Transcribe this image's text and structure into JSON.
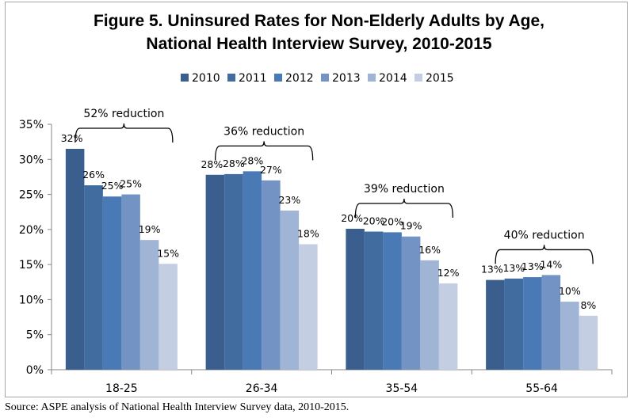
{
  "chart_data": {
    "type": "bar",
    "title": "Figure 5. Uninsured Rates for Non-Elderly Adults by Age, National Health Interview Survey, 2010-2015",
    "title_lines": [
      "Figure 5. Uninsured Rates for Non-Elderly Adults by Age,",
      "National Health Interview Survey, 2010-2015"
    ],
    "categories": [
      "18-25",
      "26-34",
      "35-54",
      "55-64"
    ],
    "series": [
      {
        "name": "2010",
        "color": "#3a5f8f",
        "values": [
          31.5,
          27.8,
          20.1,
          12.8
        ],
        "labels": [
          "32%",
          "28%",
          "20%",
          "13%"
        ]
      },
      {
        "name": "2011",
        "color": "#416ca0",
        "values": [
          26.3,
          27.9,
          19.7,
          13.0
        ],
        "labels": [
          "26%",
          "28%",
          "20%",
          "13%"
        ]
      },
      {
        "name": "2012",
        "color": "#4a7ab5",
        "values": [
          24.7,
          28.3,
          19.6,
          13.2
        ],
        "labels": [
          "25%",
          "28%",
          "20%",
          "13%"
        ]
      },
      {
        "name": "2013",
        "color": "#7293c4",
        "values": [
          25.0,
          27.0,
          19.0,
          13.5
        ],
        "labels": [
          "25%",
          "27%",
          "19%",
          "14%"
        ]
      },
      {
        "name": "2014",
        "color": "#a0b4d6",
        "values": [
          18.5,
          22.7,
          15.6,
          9.7
        ],
        "labels": [
          "19%",
          "23%",
          "16%",
          "10%"
        ]
      },
      {
        "name": "2015",
        "color": "#c3cee3",
        "values": [
          15.1,
          17.9,
          12.3,
          7.7
        ],
        "labels": [
          "15%",
          "18%",
          "12%",
          "8%"
        ]
      }
    ],
    "annotations": [
      "52% reduction",
      "36% reduction",
      "39% reduction",
      "40% reduction"
    ],
    "ylim": [
      0,
      35
    ],
    "yticks": [
      "0%",
      "5%",
      "10%",
      "15%",
      "20%",
      "25%",
      "30%",
      "35%"
    ],
    "xlabel": "",
    "ylabel": "",
    "grid": false,
    "legend": "top"
  },
  "source": "Source: ASPE analysis of National Health Interview Survey data, 2010-2015."
}
